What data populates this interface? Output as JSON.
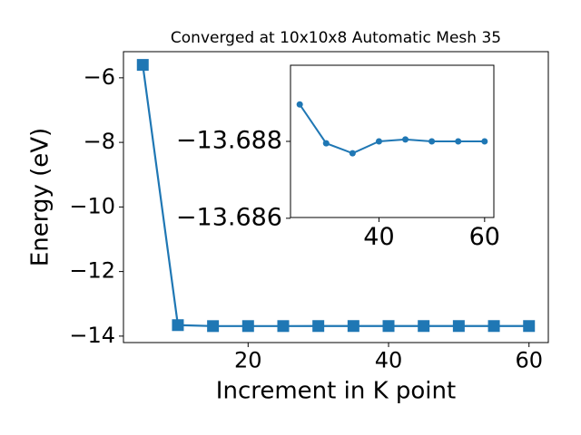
{
  "chart_data": [
    {
      "type": "line",
      "title": "Converged at 10x10x8 Automatic Mesh 35",
      "xlabel": "Increment in K point",
      "ylabel": "Energy (eV)",
      "x": [
        5,
        10,
        15,
        20,
        25,
        30,
        35,
        40,
        45,
        50,
        55,
        60
      ],
      "series": [
        {
          "values": [
            -5.6,
            -13.66,
            -13.69,
            -13.689,
            -13.68896,
            -13.68795,
            -13.68769,
            -13.688,
            -13.68805,
            -13.688,
            -13.688,
            -13.688
          ],
          "color": "#1f77b4",
          "marker": "square"
        }
      ],
      "xlim": [
        2.25,
        62.75
      ],
      "ylim": [
        -14.2,
        -5.19
      ],
      "xticks": [
        20,
        40,
        60
      ],
      "yticks": [
        {
          "value": -14,
          "label": "−14"
        },
        {
          "value": -12,
          "label": "−12"
        },
        {
          "value": -10,
          "label": "−10"
        },
        {
          "value": -8,
          "label": "−8"
        },
        {
          "value": -6,
          "label": "−6"
        }
      ]
    },
    {
      "type": "line",
      "x": [
        25,
        30,
        35,
        40,
        45,
        50,
        55,
        60
      ],
      "series": [
        {
          "values": [
            -13.68896,
            -13.68795,
            -13.68769,
            -13.688,
            -13.68805,
            -13.688,
            -13.688,
            -13.688
          ],
          "color": "#1f77b4",
          "marker": "circle"
        }
      ],
      "xlim": [
        23.25,
        61.75
      ],
      "ylim": [
        -13.68602,
        -13.68998
      ],
      "xticks": [
        40,
        60
      ],
      "yticks": [
        {
          "value": -13.688,
          "label": "−13.688"
        },
        {
          "value": -13.686,
          "label": "−13.686"
        }
      ]
    }
  ]
}
